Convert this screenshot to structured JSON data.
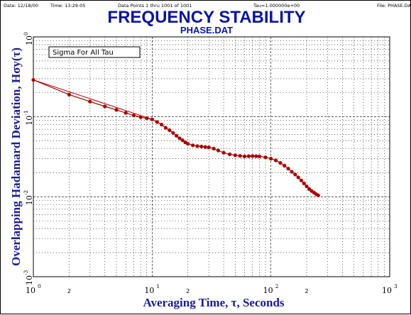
{
  "header": {
    "date": "Date: 12/18/00",
    "time": "Time: 13:29:05",
    "data_points": "Data Points 1 thru 1001 of 1001",
    "tau": "Tau=1.000000e+00",
    "file": "File: PHASE.DAT"
  },
  "chart_data": {
    "type": "scatter",
    "title": "FREQUENCY STABILITY",
    "subtitle": "PHASE.DAT",
    "xlabel": "Averaging Time, τ, Seconds",
    "ylabel": "Overlapping Hadamard Deviation, Hσy(τ)",
    "x_scale": "log",
    "y_scale": "log",
    "xlim": [
      1,
      1000
    ],
    "ylim": [
      0.001,
      1
    ],
    "grid": true,
    "legend": {
      "label": "Sigma For All Tau",
      "position": "top-left"
    },
    "x_ticks": [
      {
        "base": "10",
        "exp": "0"
      },
      {
        "base": "10",
        "exp": "1"
      },
      {
        "base": "10",
        "exp": "2"
      },
      {
        "base": "10",
        "exp": "3"
      }
    ],
    "x_minor_labels": [
      "2",
      "2",
      "2"
    ],
    "y_ticks": [
      {
        "base": "10",
        "exp": "0"
      },
      {
        "base": "10",
        "exp": "-1"
      },
      {
        "base": "10",
        "exp": "-2"
      },
      {
        "base": "10",
        "exp": "-3"
      }
    ],
    "color": "#b00000",
    "fit_line": {
      "x": [
        1,
        10
      ],
      "y": [
        0.29,
        0.093
      ]
    },
    "points": {
      "x": [
        1,
        2,
        3,
        4,
        5,
        6,
        7,
        8,
        9,
        10,
        11,
        12,
        13,
        14,
        15,
        16,
        17,
        18,
        19,
        20,
        22,
        24,
        26,
        28,
        30,
        33,
        36,
        40,
        45,
        50,
        55,
        60,
        65,
        70,
        75,
        80,
        90,
        100,
        110,
        120,
        130,
        140,
        150,
        160,
        170,
        180,
        190,
        200,
        210,
        220,
        230,
        240,
        250
      ],
      "y": [
        0.29,
        0.19,
        0.155,
        0.135,
        0.122,
        0.112,
        0.104,
        0.099,
        0.096,
        0.093,
        0.086,
        0.08,
        0.073,
        0.068,
        0.063,
        0.058,
        0.054,
        0.051,
        0.048,
        0.046,
        0.044,
        0.043,
        0.0425,
        0.042,
        0.0415,
        0.04,
        0.038,
        0.0355,
        0.034,
        0.033,
        0.0325,
        0.032,
        0.0322,
        0.0323,
        0.0322,
        0.032,
        0.0312,
        0.03,
        0.0285,
        0.0265,
        0.0245,
        0.0225,
        0.0205,
        0.019,
        0.0175,
        0.016,
        0.0147,
        0.0135,
        0.0125,
        0.0118,
        0.0113,
        0.0108,
        0.0104
      ]
    }
  }
}
